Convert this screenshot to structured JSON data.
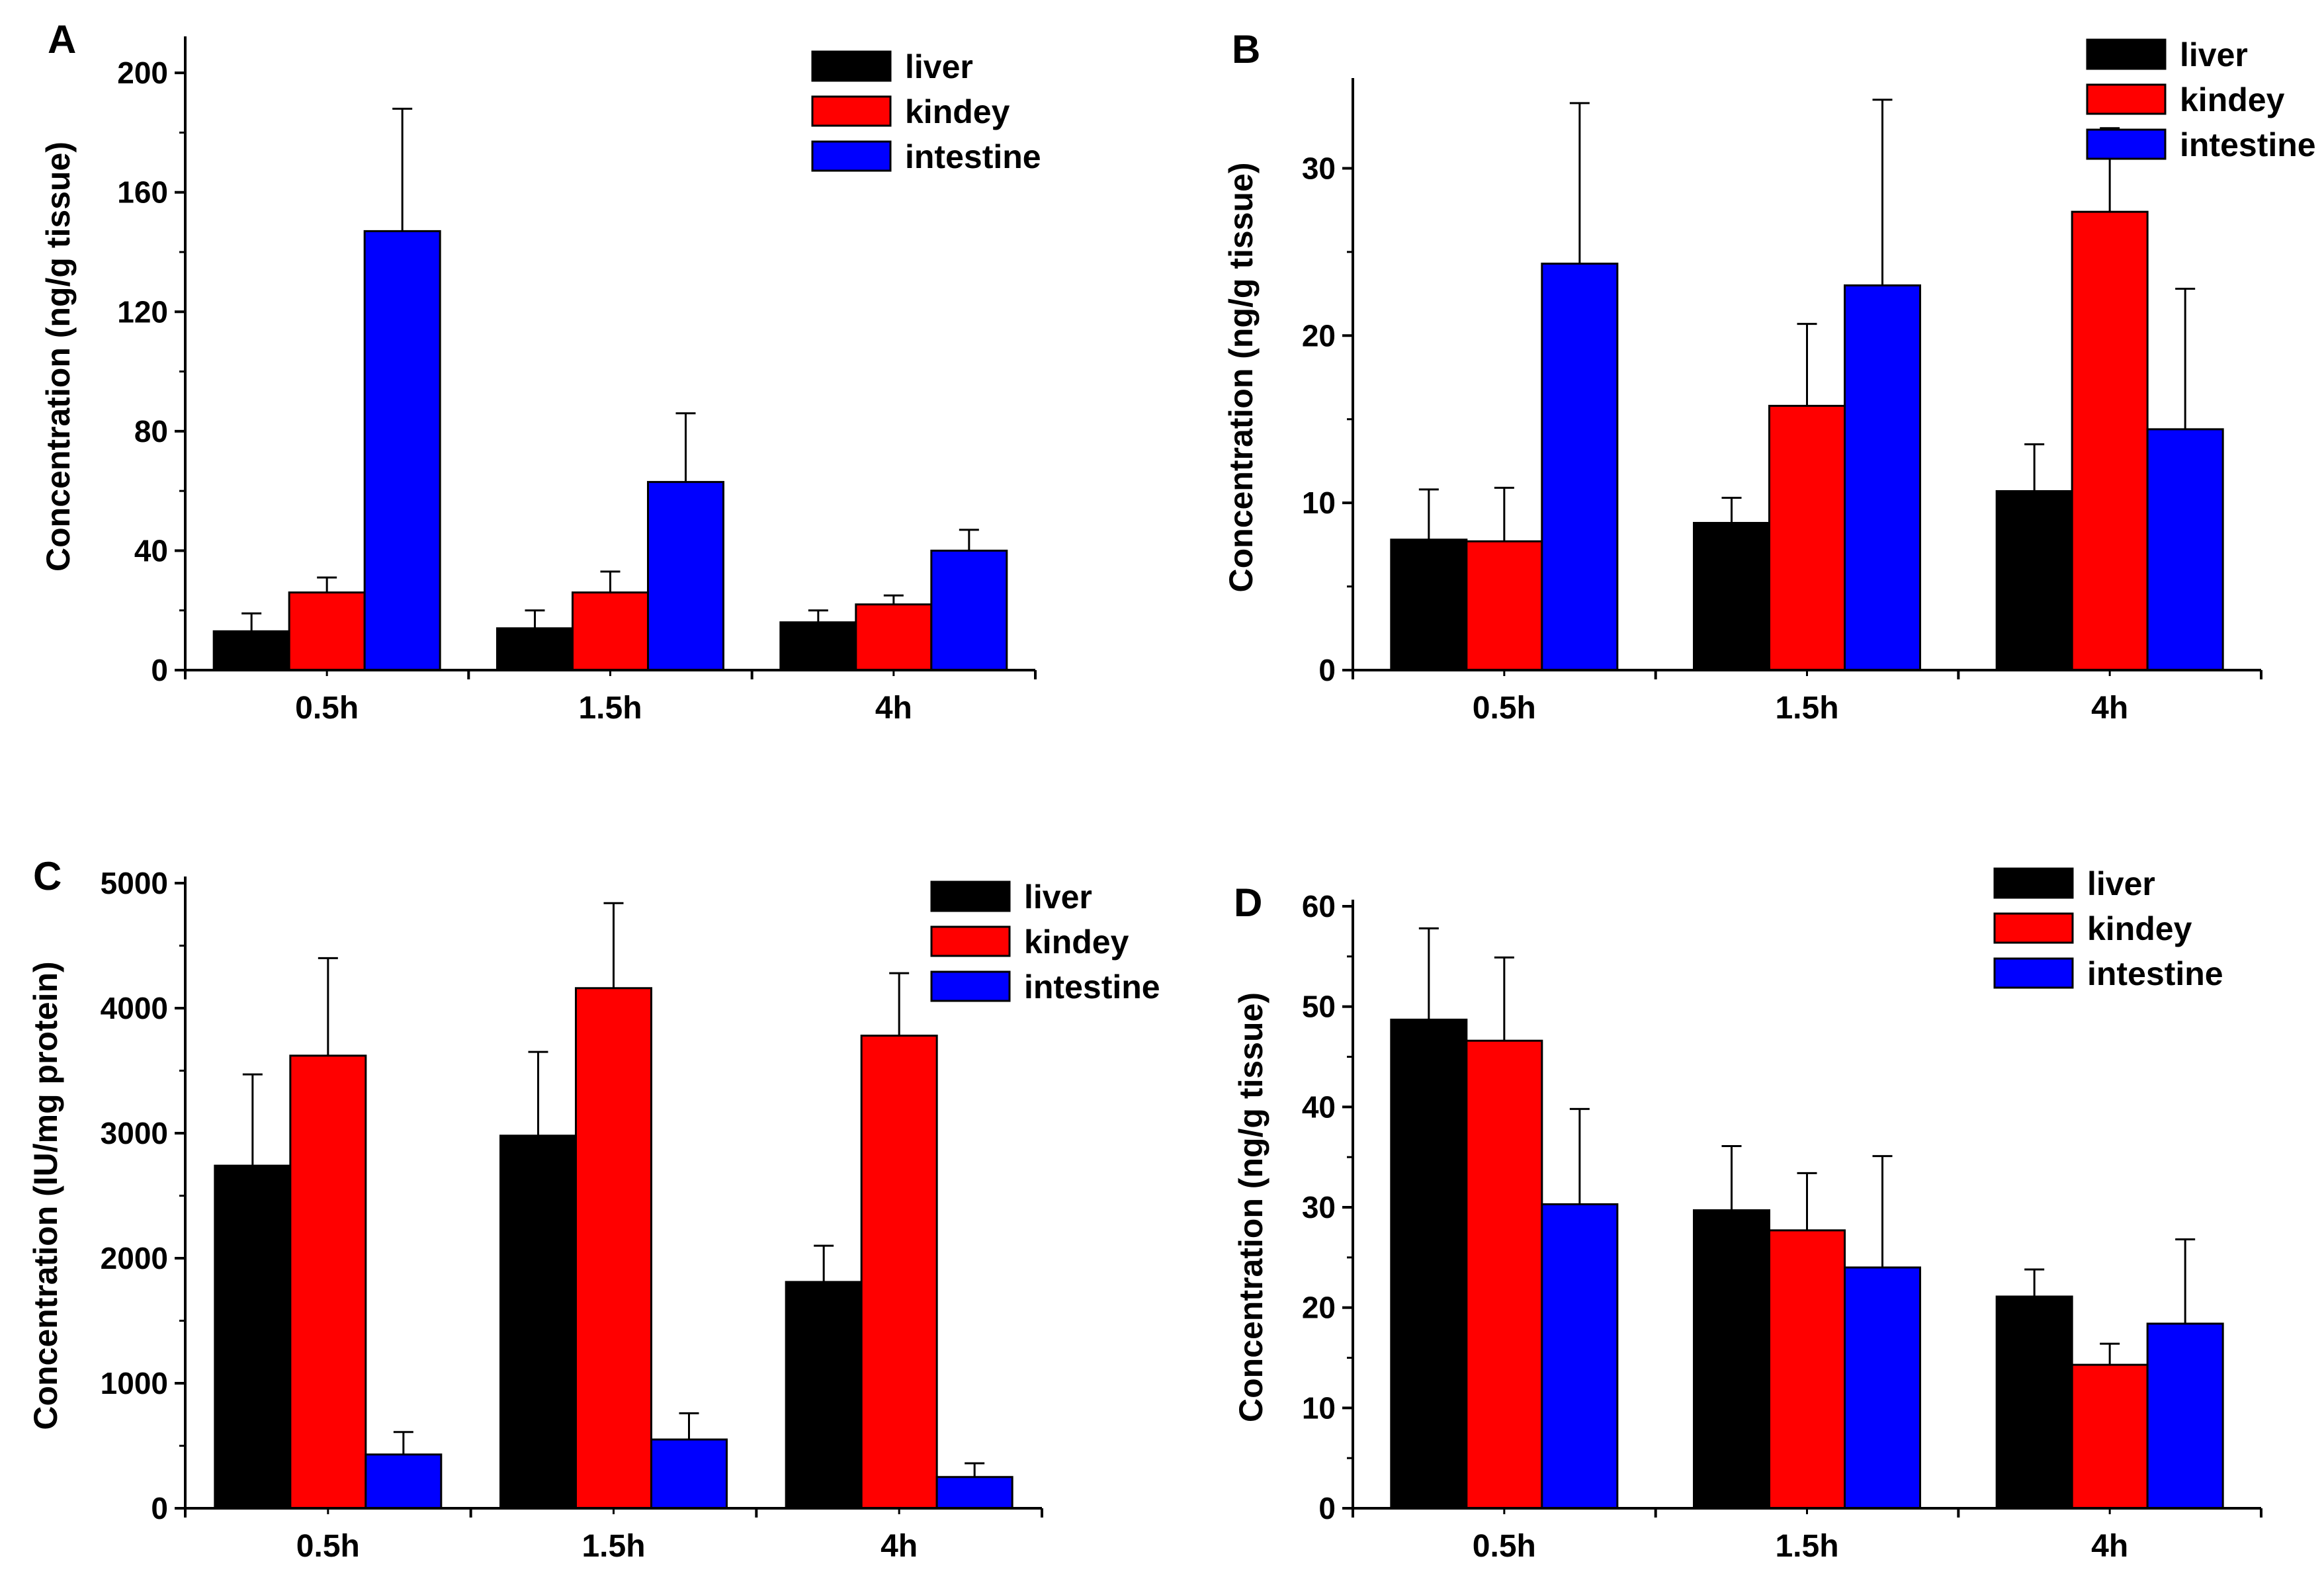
{
  "figure": {
    "panels": [
      "A",
      "B",
      "C",
      "D"
    ]
  },
  "chart_data": [
    {
      "panel": "A",
      "type": "bar",
      "title": "",
      "xlabel": "",
      "ylabel": "Concentration (ng/g tissue)",
      "categories": [
        "0.5h",
        "1.5h",
        "4h"
      ],
      "ylim": [
        0,
        210
      ],
      "yticks": [
        0,
        40,
        80,
        120,
        160,
        200
      ],
      "grid": false,
      "legend": "top-right",
      "series": [
        {
          "name": "liver",
          "color": "#000000",
          "values": [
            13,
            14,
            16
          ],
          "errors": [
            6,
            6,
            4
          ]
        },
        {
          "name": "kindey",
          "color": "#ff0000",
          "values": [
            26,
            26,
            22
          ],
          "errors": [
            5,
            7,
            3
          ]
        },
        {
          "name": "intestine",
          "color": "#0000ff",
          "values": [
            147,
            63,
            40
          ],
          "errors": [
            41,
            23,
            7
          ]
        }
      ]
    },
    {
      "panel": "B",
      "type": "bar",
      "title": "",
      "xlabel": "",
      "ylabel": "Concentration (ng/g tissue)",
      "categories": [
        "0.5h",
        "1.5h",
        "4h"
      ],
      "ylim": [
        0,
        35
      ],
      "yticks": [
        0,
        10,
        20,
        30
      ],
      "grid": false,
      "legend": "top-right",
      "series": [
        {
          "name": "liver",
          "color": "#000000",
          "values": [
            7.8,
            8.8,
            10.7
          ],
          "errors": [
            3.0,
            1.5,
            2.8
          ]
        },
        {
          "name": "kindey",
          "color": "#ff0000",
          "values": [
            7.7,
            15.8,
            27.4
          ],
          "errors": [
            3.2,
            4.9,
            5.0
          ]
        },
        {
          "name": "intestine",
          "color": "#0000ff",
          "values": [
            24.3,
            23.0,
            14.4
          ],
          "errors": [
            9.6,
            11.1,
            8.4
          ]
        }
      ]
    },
    {
      "panel": "C",
      "type": "bar",
      "title": "",
      "xlabel": "",
      "ylabel": "Concentration (IU/mg protein)",
      "categories": [
        "0.5h",
        "1.5h",
        "4h"
      ],
      "ylim": [
        0,
        5000
      ],
      "yticks": [
        0,
        1000,
        2000,
        3000,
        4000,
        5000
      ],
      "grid": false,
      "legend": "top-right",
      "series": [
        {
          "name": "liver",
          "color": "#000000",
          "values": [
            2740,
            2980,
            1810
          ],
          "errors": [
            730,
            670,
            290
          ]
        },
        {
          "name": "kindey",
          "color": "#ff0000",
          "values": [
            3620,
            4160,
            3780
          ],
          "errors": [
            780,
            680,
            500
          ]
        },
        {
          "name": "intestine",
          "color": "#0000ff",
          "values": [
            430,
            550,
            250
          ],
          "errors": [
            180,
            210,
            110
          ]
        }
      ]
    },
    {
      "panel": "D",
      "type": "bar",
      "title": "",
      "xlabel": "",
      "ylabel": "Concentration (ng/g tissue)",
      "categories": [
        "0.5h",
        "1.5h",
        "4h"
      ],
      "ylim": [
        0,
        60
      ],
      "yticks": [
        0,
        10,
        20,
        30,
        40,
        50,
        60
      ],
      "grid": false,
      "legend": "top-right",
      "series": [
        {
          "name": "liver",
          "color": "#000000",
          "values": [
            48.7,
            29.7,
            21.1
          ],
          "errors": [
            9.1,
            6.4,
            2.7
          ]
        },
        {
          "name": "kindey",
          "color": "#ff0000",
          "values": [
            46.6,
            27.7,
            14.3
          ],
          "errors": [
            8.3,
            5.7,
            2.1
          ]
        },
        {
          "name": "intestine",
          "color": "#0000ff",
          "values": [
            30.3,
            24.0,
            18.4
          ],
          "errors": [
            9.5,
            11.1,
            8.4
          ]
        }
      ]
    }
  ]
}
